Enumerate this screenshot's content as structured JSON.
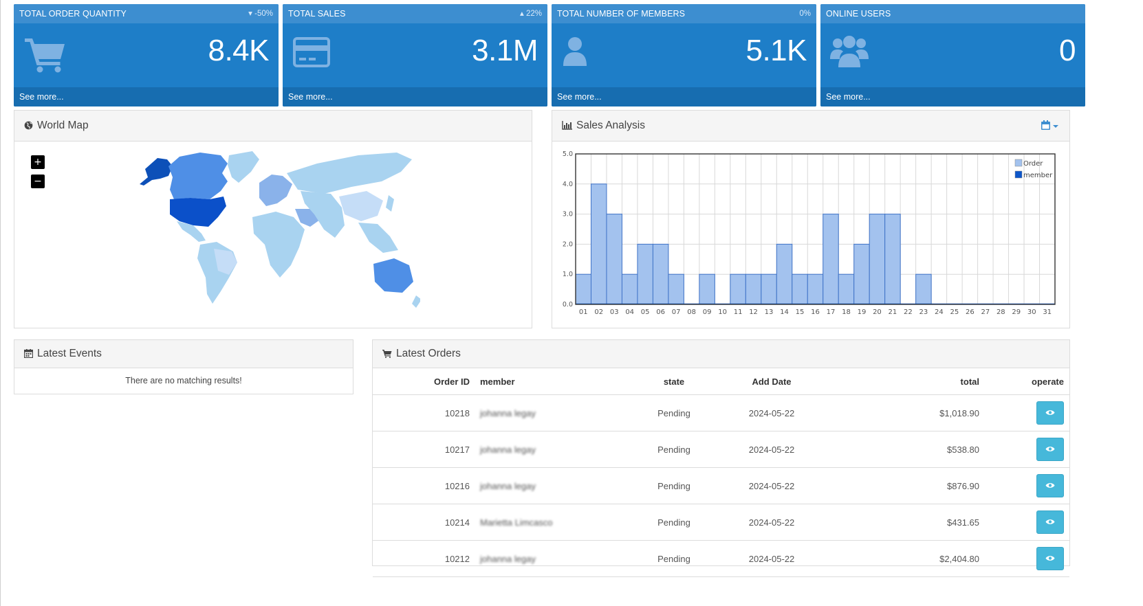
{
  "tiles": [
    {
      "title": "TOTAL ORDER QUANTITY",
      "change": "▾ -50%",
      "value": "8.4K",
      "footer": "See more...",
      "icon": "shopping-cart-icon"
    },
    {
      "title": "TOTAL SALES",
      "change": "▴ 22%",
      "value": "3.1M",
      "footer": "See more...",
      "icon": "credit-card-icon"
    },
    {
      "title": "TOTAL NUMBER OF MEMBERS",
      "change": "0%",
      "value": "5.1K",
      "footer": "See more...",
      "icon": "user-icon"
    },
    {
      "title": "ONLINE USERS",
      "change": "",
      "value": "0",
      "footer": "See more...",
      "icon": "users-icon"
    }
  ],
  "world_map": {
    "title": "World Map",
    "icon": "globe-icon",
    "zoom_in": "+",
    "zoom_out": "−"
  },
  "sales_analysis": {
    "title": "Sales Analysis",
    "icon": "bar-chart-icon",
    "menu_icon": "calendar-icon"
  },
  "latest_events": {
    "title": "Latest Events",
    "icon": "calendar-icon",
    "empty_message": "There are no matching results!"
  },
  "latest_orders": {
    "title": "Latest Orders",
    "icon": "shopping-cart-icon",
    "columns": [
      "Order ID",
      "member",
      "state",
      "Add Date",
      "total",
      "operate"
    ],
    "rows": [
      {
        "order_id": "10218",
        "member": "johanna legay",
        "state": "Pending",
        "date": "2024-05-22",
        "total": "$1,018.90"
      },
      {
        "order_id": "10217",
        "member": "johanna legay",
        "state": "Pending",
        "date": "2024-05-22",
        "total": "$538.80"
      },
      {
        "order_id": "10216",
        "member": "johanna legay",
        "state": "Pending",
        "date": "2024-05-22",
        "total": "$876.90"
      },
      {
        "order_id": "10214",
        "member": "Marietta Limcasco",
        "state": "Pending",
        "date": "2024-05-22",
        "total": "$431.65"
      },
      {
        "order_id": "10212",
        "member": "johanna legay",
        "state": "Pending",
        "date": "2024-05-22",
        "total": "$2,404.80"
      }
    ]
  },
  "colors": {
    "tile": "#1e7ec8",
    "tile_header": "#3d8ed0",
    "tile_footer": "#176db0",
    "order_bar": "#a3c2ee",
    "member_bar": "#0d56c9",
    "view_button": "#46b8da"
  },
  "chart_data": {
    "type": "bar",
    "categories": [
      "01",
      "02",
      "03",
      "04",
      "05",
      "06",
      "07",
      "08",
      "09",
      "10",
      "11",
      "12",
      "13",
      "14",
      "15",
      "16",
      "17",
      "18",
      "19",
      "20",
      "21",
      "22",
      "23",
      "24",
      "25",
      "26",
      "27",
      "28",
      "29",
      "30",
      "31"
    ],
    "series": [
      {
        "name": "Order",
        "values": [
          1,
          4,
          3,
          1,
          2,
          2,
          1,
          0,
          1,
          0,
          1,
          1,
          1,
          2,
          1,
          1,
          3,
          1,
          2,
          3,
          3,
          0,
          1,
          0,
          0,
          0,
          0,
          0,
          0,
          0,
          0
        ]
      },
      {
        "name": "member",
        "values": [
          0,
          0,
          0,
          0,
          0,
          0,
          0,
          0,
          0,
          0,
          0,
          0,
          0,
          0,
          0,
          0,
          0,
          0,
          0,
          0,
          0,
          0,
          0,
          0,
          0,
          0,
          0,
          0,
          0,
          0,
          0
        ]
      }
    ],
    "yticks": [
      "0.0",
      "1.0",
      "2.0",
      "3.0",
      "4.0",
      "5.0"
    ],
    "ylim": [
      0,
      5
    ],
    "legend": "top-right",
    "grid": true
  }
}
